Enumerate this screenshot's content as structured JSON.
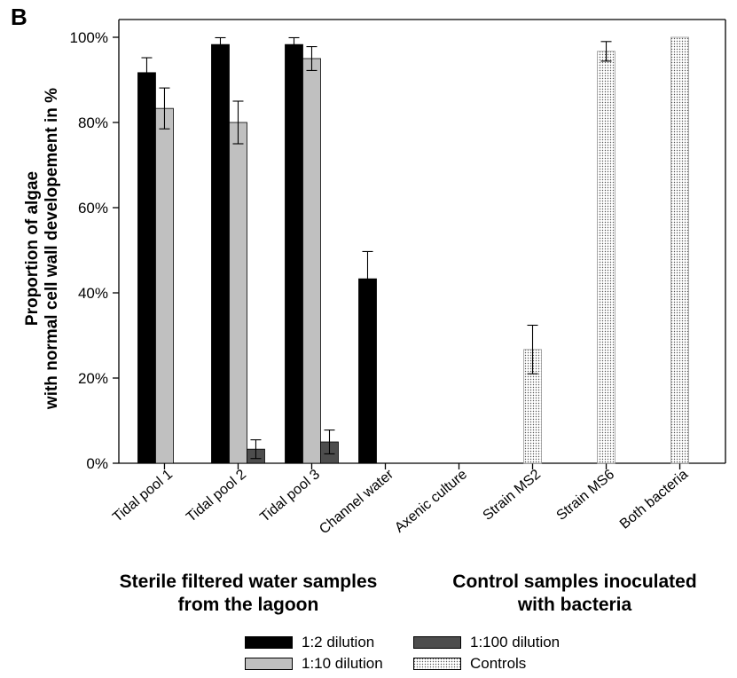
{
  "panel_label": "B",
  "chart_data": {
    "type": "bar",
    "ylabel_line1": "Proportion of algae",
    "ylabel_line2": "with normal cell wall developement in %",
    "xlabel": "",
    "ylim": [
      0,
      100
    ],
    "yticks": [
      0,
      20,
      40,
      60,
      80,
      100
    ],
    "ytick_labels": [
      "0%",
      "20%",
      "40%",
      "60%",
      "80%",
      "100%"
    ],
    "categories": [
      "Tidal pool 1",
      "Tidal pool 2",
      "Tidal pool 3",
      "Channel water",
      "Axenic culture",
      "Strain MS2",
      "Strain MS6",
      "Both bacteria"
    ],
    "series": [
      {
        "name": "1:2 dilution",
        "color": "#000000",
        "pattern": "solid",
        "values": [
          91.7,
          98.3,
          98.3,
          43.3,
          null,
          null,
          null,
          null
        ],
        "errors": [
          3.5,
          1.6,
          1.6,
          6.4,
          null,
          null,
          null,
          null
        ]
      },
      {
        "name": "1:10 dilution",
        "color": "#c0c0c0",
        "pattern": "solid",
        "values": [
          83.3,
          80.0,
          95.0,
          null,
          null,
          null,
          null,
          null
        ],
        "errors": [
          4.8,
          5.0,
          2.8,
          null,
          null,
          null,
          null,
          null
        ]
      },
      {
        "name": "1:100 dilution",
        "color": "#4d4d4d",
        "pattern": "solid",
        "values": [
          null,
          3.3,
          5.0,
          null,
          null,
          null,
          null,
          null
        ],
        "errors": [
          null,
          2.2,
          2.8,
          null,
          null,
          null,
          null,
          null
        ]
      },
      {
        "name": "Controls",
        "color": "#ffffff",
        "pattern": "dotted",
        "values": [
          null,
          null,
          null,
          null,
          0,
          26.7,
          96.7,
          100
        ],
        "errors": [
          null,
          null,
          null,
          null,
          null,
          5.7,
          2.3,
          null
        ]
      }
    ],
    "group_labels": [
      "Sterile filtered water samples from the lagoon",
      "Control samples inoculated with bacteria"
    ],
    "group_labels_lines": [
      [
        "Sterile filtered water samples",
        "from the lagoon"
      ],
      [
        "Control samples inoculated",
        "with bacteria"
      ]
    ],
    "grid": false,
    "legend_position": "bottom"
  }
}
